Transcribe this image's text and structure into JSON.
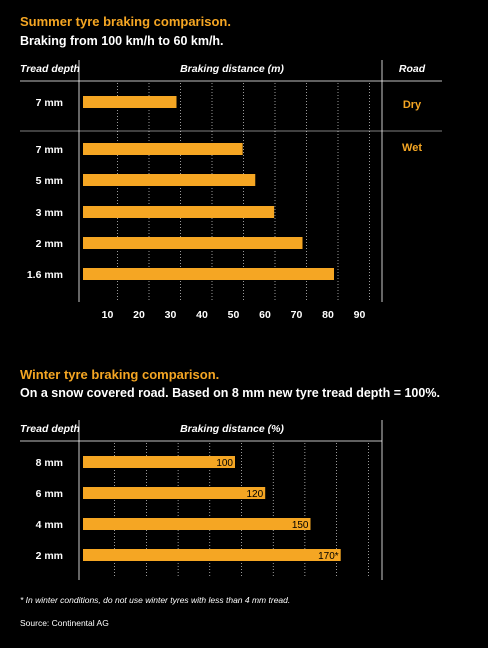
{
  "colors": {
    "background": "#000000",
    "bar": "#f5a623",
    "text": "#ffffff",
    "accent": "#f5a623",
    "grid": "#ffffff"
  },
  "chart_data": [
    {
      "type": "bar",
      "orientation": "horizontal",
      "title": "Summer tyre braking comparison.",
      "subtitle": "Braking from 100 km/h to 60 km/h.",
      "header_left": "Tread depth",
      "header_center": "Braking distance (m)",
      "header_right": "Road",
      "categories": [
        "7 mm",
        "7 mm",
        "5 mm",
        "3 mm",
        "2 mm",
        "1.6 mm"
      ],
      "values": [
        30,
        51,
        55,
        61,
        70,
        80
      ],
      "road_conditions": [
        {
          "label": "Dry",
          "rows": [
            0
          ]
        },
        {
          "label": "Wet",
          "rows": [
            1,
            2,
            3,
            4,
            5
          ]
        }
      ],
      "x_ticks": [
        10,
        20,
        30,
        40,
        50,
        60,
        70,
        80,
        90
      ],
      "xlim": [
        0,
        95
      ],
      "grid": true,
      "grid_style": "dotted vertical"
    },
    {
      "type": "bar",
      "orientation": "horizontal",
      "title": "Winter tyre braking comparison.",
      "subtitle": "On a snow covered road. Based on 8 mm new tyre tread depth = 100%.",
      "header_left": "Tread depth",
      "header_center": "Braking distance (%)",
      "categories": [
        "8 mm",
        "6 mm",
        "4 mm",
        "2 mm"
      ],
      "values": [
        100,
        120,
        150,
        170
      ],
      "data_labels": [
        "100",
        "120",
        "150",
        "170*"
      ],
      "xlim": [
        0,
        190
      ],
      "grid": true,
      "grid_style": "dotted vertical"
    }
  ],
  "footnote": "* In winter conditions, do not use winter tyres with less than 4 mm tread.",
  "source": "Source: Continental AG"
}
